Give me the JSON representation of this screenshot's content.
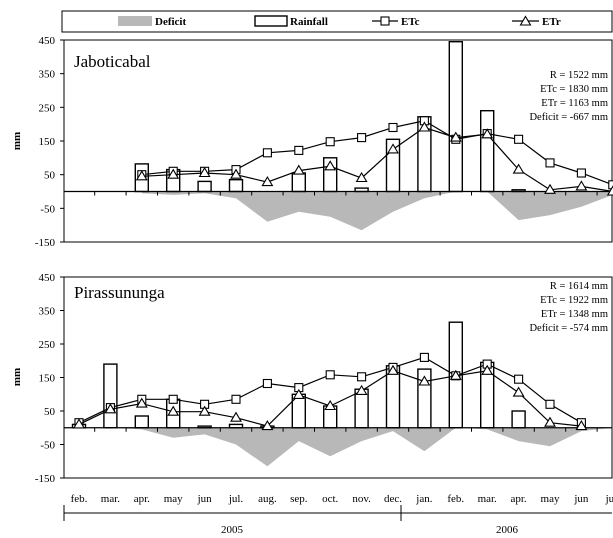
{
  "legend": [
    {
      "key": "deficit",
      "label": "Deficit"
    },
    {
      "key": "rainfall",
      "label": "Rainfall"
    },
    {
      "key": "etc",
      "label": "ETc"
    },
    {
      "key": "etr",
      "label": "ETr"
    }
  ],
  "colors": {
    "deficit": "#b8b8b8",
    "line": "#000000",
    "background": "#ffffff"
  },
  "chart_data": [
    {
      "type": "bar+line",
      "site": "Jaboticabal",
      "ylabel": "mm",
      "ylim": [
        -150,
        450
      ],
      "yticks": [
        450,
        350,
        250,
        150,
        50,
        -50,
        -150
      ],
      "stats": [
        "R = 1522 mm",
        "ETc = 1830 mm",
        "ETr = 1163 mm",
        "Deficit = -667 mm"
      ],
      "categories": [
        "feb.",
        "mar.",
        "apr.",
        "may",
        "jun",
        "jul.",
        "aug.",
        "sep.",
        "oct.",
        "nov.",
        "dec.",
        "jan.",
        "feb.",
        "mar.",
        "apr.",
        "may",
        "jun",
        "jul."
      ],
      "series": [
        {
          "name": "Rainfall",
          "kind": "bar",
          "values": [
            null,
            null,
            82,
            65,
            30,
            35,
            0,
            55,
            100,
            10,
            155,
            222,
            445,
            240,
            5,
            0,
            0,
            0
          ]
        },
        {
          "name": "ETc",
          "kind": "line",
          "marker": "square",
          "values": [
            null,
            null,
            50,
            60,
            60,
            65,
            115,
            122,
            148,
            160,
            190,
            210,
            155,
            172,
            155,
            85,
            55,
            20
          ]
        },
        {
          "name": "ETr",
          "kind": "line",
          "marker": "triangle",
          "values": [
            null,
            null,
            45,
            50,
            55,
            50,
            28,
            62,
            75,
            40,
            125,
            190,
            160,
            170,
            65,
            5,
            15,
            0
          ]
        },
        {
          "name": "Deficit",
          "kind": "area",
          "values": [
            null,
            null,
            -5,
            -10,
            -5,
            -20,
            -90,
            -60,
            -75,
            -115,
            -60,
            -20,
            0,
            0,
            -85,
            -70,
            -45,
            -10
          ]
        }
      ]
    },
    {
      "type": "bar+line",
      "site": "Pirassununga",
      "ylabel": "mm",
      "ylim": [
        -150,
        450
      ],
      "yticks": [
        450,
        350,
        250,
        150,
        50,
        -50,
        -150
      ],
      "stats": [
        "R = 1614 mm",
        "ETc = 1922 mm",
        "ETr = 1348 mm",
        "Deficit = -574 mm"
      ],
      "categories": [
        "feb.",
        "mar.",
        "apr.",
        "may",
        "jun",
        "jul.",
        "aug.",
        "sep.",
        "oct.",
        "nov.",
        "dec.",
        "jan.",
        "feb.",
        "mar.",
        "apr.",
        "may",
        "jun",
        "jul."
      ],
      "series": [
        {
          "name": "Rainfall",
          "kind": "bar",
          "values": [
            10,
            190,
            35,
            85,
            5,
            10,
            5,
            100,
            65,
            115,
            185,
            175,
            315,
            195,
            50,
            0,
            0,
            0
          ]
        },
        {
          "name": "ETc",
          "kind": "line",
          "marker": "square",
          "values": [
            15,
            60,
            85,
            85,
            70,
            85,
            132,
            120,
            158,
            152,
            180,
            210,
            155,
            190,
            145,
            70,
            15,
            null
          ]
        },
        {
          "name": "ETr",
          "kind": "line",
          "marker": "triangle",
          "values": [
            10,
            55,
            72,
            48,
            48,
            30,
            5,
            98,
            65,
            110,
            170,
            138,
            155,
            170,
            105,
            15,
            5,
            null
          ]
        },
        {
          "name": "Deficit",
          "kind": "area",
          "values": [
            0,
            0,
            -5,
            -30,
            -20,
            -50,
            -115,
            -40,
            -85,
            -40,
            -10,
            -70,
            0,
            -5,
            -40,
            -55,
            -10,
            0
          ]
        }
      ]
    }
  ],
  "years": [
    "2005",
    "2006"
  ]
}
